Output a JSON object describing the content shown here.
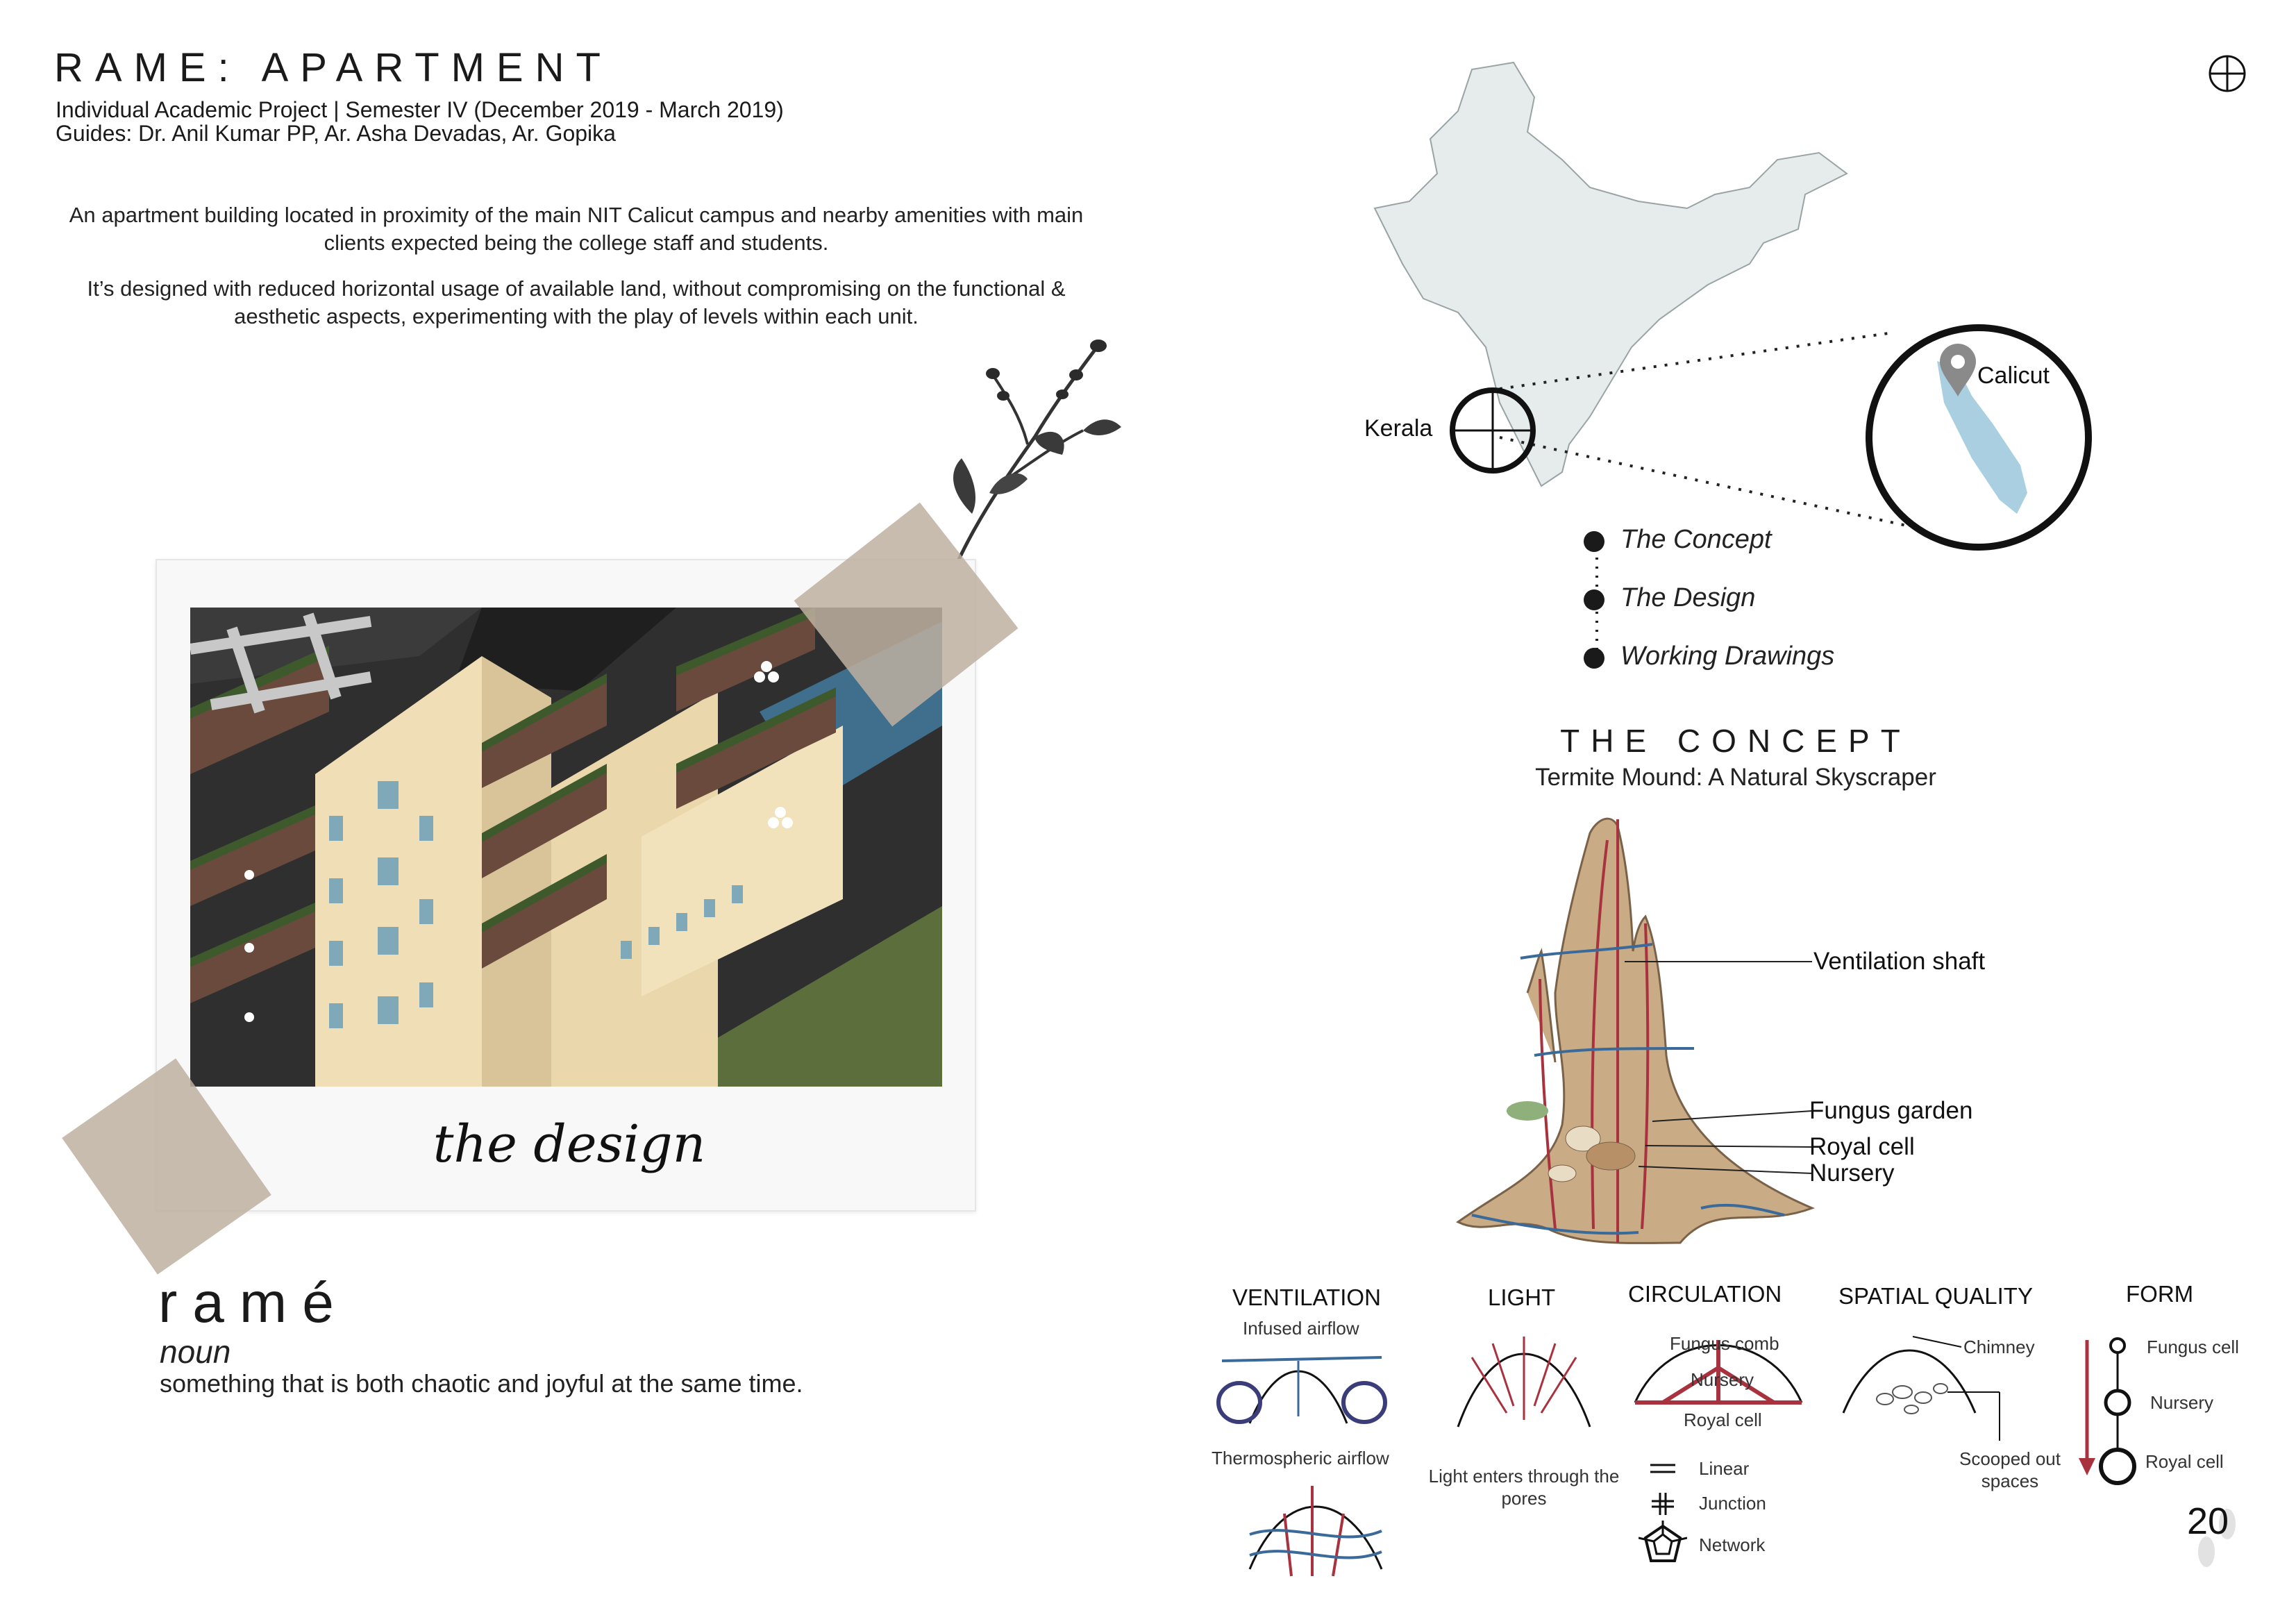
{
  "header": {
    "title": "RAME: APARTMENT",
    "subtitle_line1": "Individual Academic Project | Semester IV (December 2019 - March 2019)",
    "subtitle_line2": "Guides: Dr. Anil Kumar PP, Ar. Asha Devadas, Ar. Gopika"
  },
  "intro": {
    "paragraph1": "An apartment building located in proximity of the main NIT Calicut campus and nearby amenities with main clients expected being the college staff and students.",
    "paragraph2": "It’s designed with reduced horizontal usage of available land, without compromising on the functional & aesthetic aspects, experimenting with the play of levels within each unit."
  },
  "photo": {
    "caption": "the design"
  },
  "definition": {
    "word": "ramé",
    "part_of_speech": "noun",
    "meaning": "something that is both chaotic and joyful at the same time."
  },
  "map": {
    "state_label": "Kerala",
    "city_label": "Calicut"
  },
  "timeline": {
    "items": [
      "The Concept",
      "The Design",
      "Working Drawings"
    ]
  },
  "concept": {
    "title": "THE CONCEPT",
    "subtitle": "Termite Mound: A Natural Skyscraper",
    "labels": {
      "ventilation_shaft": "Ventilation shaft",
      "fungus_garden": "Fungus garden",
      "royal_cell": "Royal cell",
      "nursery": "Nursery"
    }
  },
  "categories": {
    "ventilation": {
      "heading": "VENTILATION",
      "top_label": "Infused airflow",
      "bottom_label": "Thermospheric airflow"
    },
    "light": {
      "heading": "LIGHT",
      "caption": "Light enters through the pores"
    },
    "circulation": {
      "heading": "CIRCULATION",
      "fungus_comb": "Fungus comb",
      "nursery": "Nursery",
      "royal_cell": "Royal cell",
      "legend_linear": "Linear",
      "legend_junction": "Junction",
      "legend_network": "Network"
    },
    "spatial_quality": {
      "heading": "SPATIAL QUALITY",
      "chimney": "Chimney",
      "scooped": "Scooped out spaces"
    },
    "form": {
      "heading": "FORM",
      "fungus_cell": "Fungus cell",
      "nursery": "Nursery",
      "royal_cell": "Royal cell"
    }
  },
  "page_number": "20",
  "colors": {
    "text": "#1a1a1a",
    "mound": "#c9ab86",
    "arrow_red": "#a8323e",
    "arrow_blue": "#3a6a9a",
    "kerala_blue": "#a9cfe0",
    "tape": "#beb0a0",
    "facade": "#f0dfb6",
    "grass": "#5b6e3c",
    "pool": "#3f6f8c"
  }
}
